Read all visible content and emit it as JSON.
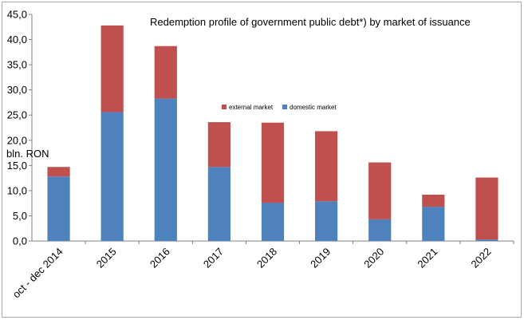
{
  "chart_data": {
    "type": "bar",
    "stacked": true,
    "title": "Redemption profile of government public debt*) by market of issuance",
    "unit_label": "bln. RON",
    "categories": [
      "oct - dec 2014",
      "2015",
      "2016",
      "2017",
      "2018",
      "2019",
      "2020",
      "2021",
      "2022"
    ],
    "series": [
      {
        "name": "domestic market",
        "color": "#4f81bd",
        "values": [
          12.8,
          25.6,
          28.3,
          14.7,
          7.6,
          7.9,
          4.3,
          6.8,
          0.3
        ]
      },
      {
        "name": "external market",
        "color": "#c0504d",
        "values": [
          1.9,
          17.2,
          10.4,
          8.9,
          15.9,
          13.9,
          11.3,
          2.4,
          12.3
        ]
      }
    ],
    "ylim": [
      0,
      45
    ],
    "yticks": [
      "0,0",
      "5,0",
      "10,0",
      "15,0",
      "20,0",
      "25,0",
      "30,0",
      "35,0",
      "40,0",
      "45,0"
    ],
    "ytick_values": [
      0,
      5,
      10,
      15,
      20,
      25,
      30,
      35,
      40,
      45
    ],
    "grid": false,
    "legend_position": "top-center"
  }
}
